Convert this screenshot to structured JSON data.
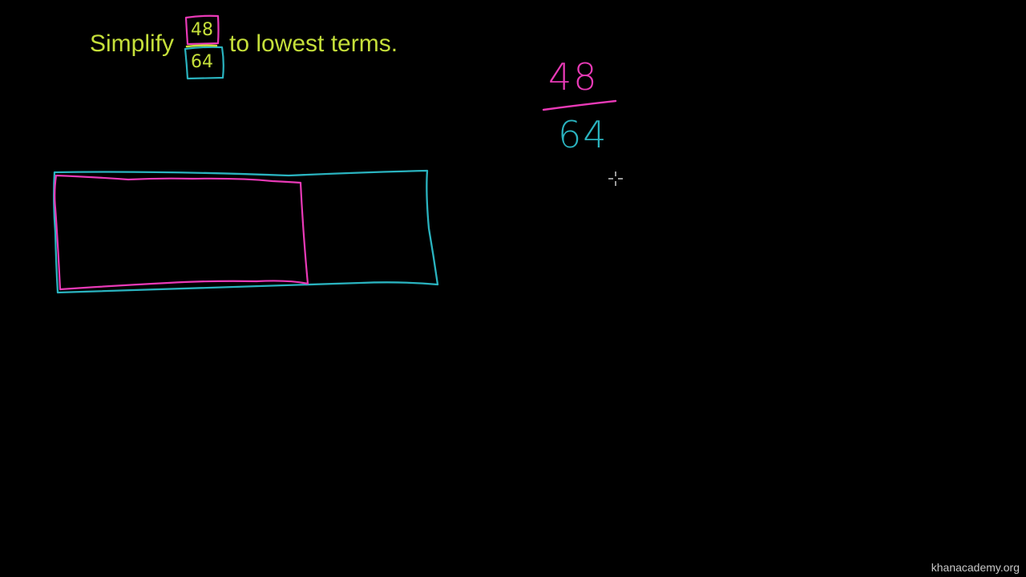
{
  "prompt": {
    "before": "Simplify",
    "numerator": "48",
    "denominator": "64",
    "after": "to lowest terms."
  },
  "work": {
    "numerator": "48",
    "denominator": "64"
  },
  "colors": {
    "background": "#000000",
    "prompt_text": "#c5df3a",
    "magenta": "#e93ab7",
    "teal": "#2ab3bf",
    "watermark": "#c8c8c8"
  },
  "icons": {
    "cursor": "crosshair-cursor-icon"
  },
  "watermark": "khanacademy.org"
}
